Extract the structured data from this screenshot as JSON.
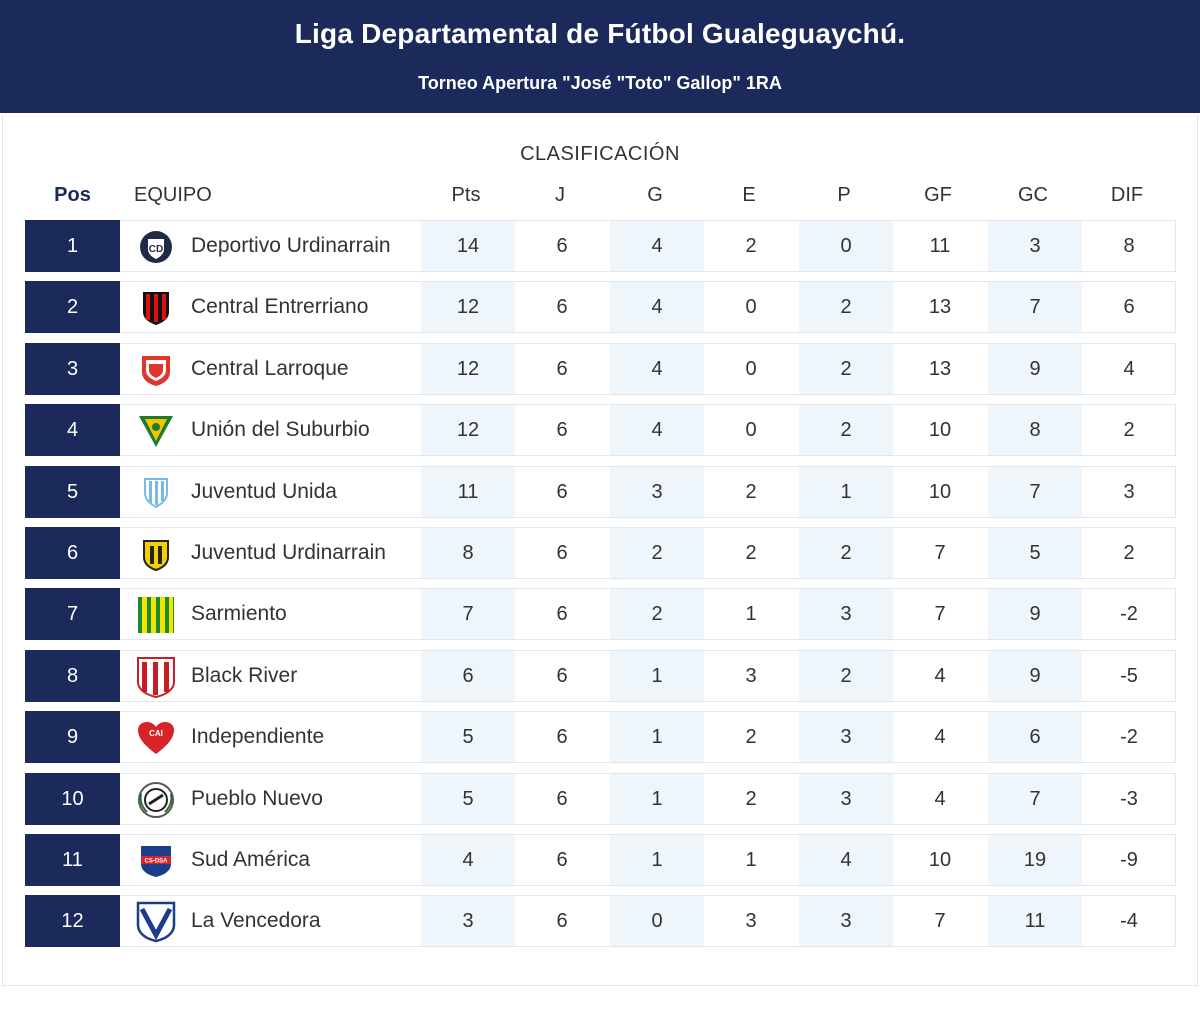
{
  "header": {
    "title": "Liga Departamental de Fútbol Gualeguaychú.",
    "subtitle": "Torneo Apertura \"José \"Toto\" Gallop\" 1RA"
  },
  "table": {
    "section_title": "CLASIFICACIÓN",
    "columns": {
      "pos": "Pos",
      "team": "EQUIPO",
      "pts": "Pts",
      "j": "J",
      "g": "G",
      "e": "E",
      "p": "P",
      "gf": "GF",
      "gc": "GC",
      "dif": "DIF"
    },
    "colors": {
      "accent": "#1b2a5a",
      "shade": "#eef5fb"
    },
    "rows": [
      {
        "pos": "1",
        "team": "Deportivo Urdinarrain",
        "pts": "14",
        "j": "6",
        "g": "4",
        "e": "2",
        "p": "0",
        "gf": "11",
        "gc": "3",
        "dif": "8",
        "logo": "shield-badge-icon"
      },
      {
        "pos": "2",
        "team": "Central Entrerriano",
        "pts": "12",
        "j": "6",
        "g": "4",
        "e": "0",
        "p": "2",
        "gf": "13",
        "gc": "7",
        "dif": "6",
        "logo": "striped-shield-icon"
      },
      {
        "pos": "3",
        "team": "Central Larroque",
        "pts": "12",
        "j": "6",
        "g": "4",
        "e": "0",
        "p": "2",
        "gf": "13",
        "gc": "9",
        "dif": "4",
        "logo": "red-shield-icon"
      },
      {
        "pos": "4",
        "team": "Unión del Suburbio",
        "pts": "12",
        "j": "6",
        "g": "4",
        "e": "0",
        "p": "2",
        "gf": "10",
        "gc": "8",
        "dif": "2",
        "logo": "green-yellow-shield-icon"
      },
      {
        "pos": "5",
        "team": "Juventud Unida",
        "pts": "11",
        "j": "6",
        "g": "3",
        "e": "2",
        "p": "1",
        "gf": "10",
        "gc": "7",
        "dif": "3",
        "logo": "lightblue-shield-icon"
      },
      {
        "pos": "6",
        "team": "Juventud Urdinarrain",
        "pts": "8",
        "j": "6",
        "g": "2",
        "e": "2",
        "p": "2",
        "gf": "7",
        "gc": "5",
        "dif": "2",
        "logo": "yellow-black-shield-icon"
      },
      {
        "pos": "7",
        "team": "Sarmiento",
        "pts": "7",
        "j": "6",
        "g": "2",
        "e": "1",
        "p": "3",
        "gf": "7",
        "gc": "9",
        "dif": "-2",
        "logo": "green-striped-shield-icon"
      },
      {
        "pos": "8",
        "team": "Black River",
        "pts": "6",
        "j": "6",
        "g": "1",
        "e": "3",
        "p": "2",
        "gf": "4",
        "gc": "9",
        "dif": "-5",
        "logo": "red-white-shield-icon"
      },
      {
        "pos": "9",
        "team": "Independiente",
        "pts": "5",
        "j": "6",
        "g": "1",
        "e": "2",
        "p": "3",
        "gf": "4",
        "gc": "6",
        "dif": "-2",
        "logo": "red-heart-shield-icon"
      },
      {
        "pos": "10",
        "team": "Pueblo Nuevo",
        "pts": "5",
        "j": "6",
        "g": "1",
        "e": "2",
        "p": "3",
        "gf": "4",
        "gc": "7",
        "dif": "-3",
        "logo": "laurel-circle-icon"
      },
      {
        "pos": "11",
        "team": "Sud América",
        "pts": "4",
        "j": "6",
        "g": "1",
        "e": "1",
        "p": "4",
        "gf": "10",
        "gc": "19",
        "dif": "-9",
        "logo": "blue-red-shield-icon"
      },
      {
        "pos": "12",
        "team": "La Vencedora",
        "pts": "3",
        "j": "6",
        "g": "0",
        "e": "3",
        "p": "3",
        "gf": "7",
        "gc": "11",
        "dif": "-4",
        "logo": "v-shield-icon"
      }
    ]
  }
}
